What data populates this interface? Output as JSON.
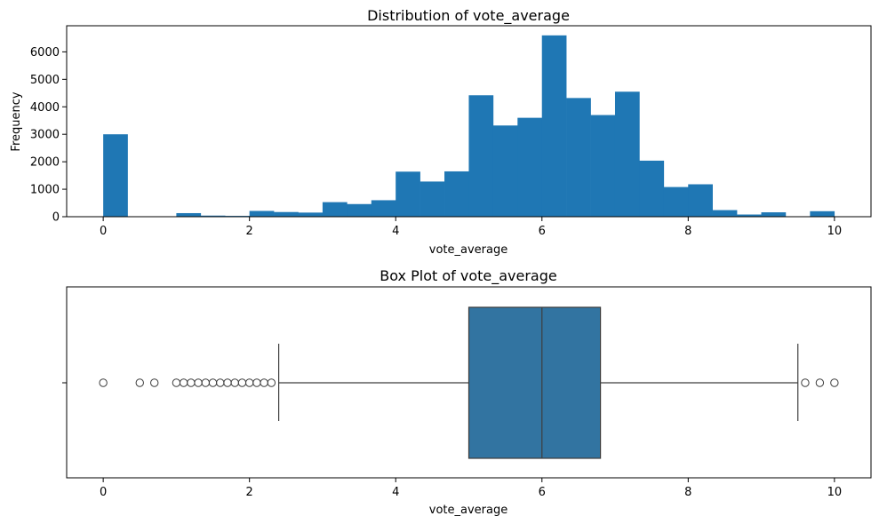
{
  "chart_data": [
    {
      "type": "bar",
      "title": "Distribution of vote_average",
      "xlabel": "vote_average",
      "ylabel": "Frequency",
      "xlim": [
        -0.5,
        10.5
      ],
      "ylim": [
        0,
        6950
      ],
      "xticks": [
        0,
        2,
        4,
        6,
        8,
        10
      ],
      "yticks": [
        0,
        1000,
        2000,
        3000,
        4000,
        5000,
        6000
      ],
      "bin_width": 0.3333,
      "bin_edges_start": 0,
      "values": [
        3000,
        0,
        0,
        130,
        40,
        30,
        210,
        170,
        150,
        530,
        460,
        600,
        1640,
        1280,
        1650,
        4420,
        3320,
        3600,
        6600,
        4320,
        3700,
        4550,
        2040,
        1080,
        1180,
        240,
        80,
        160,
        0,
        200
      ],
      "color": "#1f77b4",
      "grid": false
    },
    {
      "type": "box",
      "title": "Box Plot of vote_average",
      "xlabel": "vote_average",
      "ylabel": "",
      "xlim": [
        -0.5,
        10.5
      ],
      "xticks": [
        0,
        2,
        4,
        6,
        8,
        10
      ],
      "whisker_low": 2.4,
      "q1": 5.0,
      "median": 6.0,
      "q3": 6.8,
      "whisker_high": 9.5,
      "outliers": [
        0,
        0.5,
        0.7,
        1.0,
        1.1,
        1.2,
        1.3,
        1.4,
        1.5,
        1.6,
        1.7,
        1.8,
        1.9,
        2.0,
        2.1,
        2.2,
        2.3,
        9.6,
        9.8,
        10.0
      ],
      "color": "#3274a1",
      "grid": false
    }
  ]
}
